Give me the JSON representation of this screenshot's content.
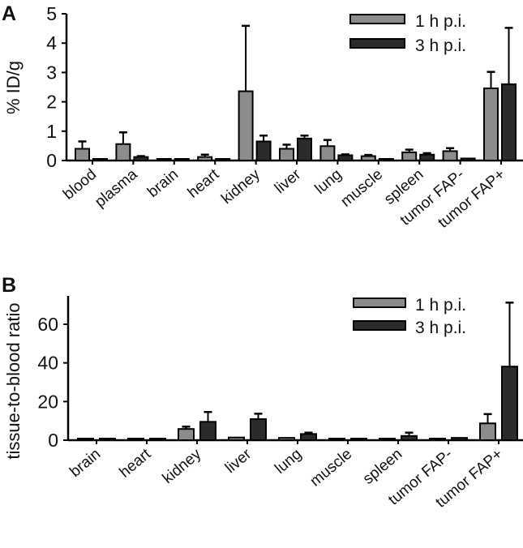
{
  "colors": {
    "series_1h": "#8c8c8c",
    "series_3h": "#2b2b2b",
    "outline": "#000000"
  },
  "chart_data": [
    {
      "panel": "A",
      "type": "bar",
      "ylabel": "% ID/g",
      "ylim": [
        0,
        5
      ],
      "yticks": [
        0,
        1,
        2,
        3,
        4,
        5
      ],
      "grid": false,
      "legend_position": "top-right",
      "categories": [
        "blood",
        "plasma",
        "brain",
        "heart",
        "kidney",
        "liver",
        "lung",
        "muscle",
        "spleen",
        "tumor FAP-",
        "tumor FAP+"
      ],
      "series": [
        {
          "name": "1 h p.i.",
          "values": [
            0.4,
            0.56,
            0.02,
            0.12,
            2.36,
            0.4,
            0.49,
            0.15,
            0.28,
            0.32,
            2.46
          ],
          "error": [
            0.25,
            0.4,
            0.01,
            0.08,
            2.23,
            0.14,
            0.21,
            0.04,
            0.09,
            0.1,
            0.56
          ]
        },
        {
          "name": "3 h p.i.",
          "values": [
            0.05,
            0.12,
            0.01,
            0.03,
            0.65,
            0.75,
            0.18,
            0.04,
            0.2,
            0.07,
            2.6
          ],
          "error": [
            0.02,
            0.03,
            0.01,
            0.01,
            0.2,
            0.1,
            0.03,
            0.01,
            0.05,
            0.02,
            1.92
          ]
        }
      ]
    },
    {
      "panel": "B",
      "type": "bar",
      "ylabel": "tissue-to-blood ratio",
      "ylim": [
        0,
        75
      ],
      "yticks": [
        0,
        20,
        40,
        60
      ],
      "grid": false,
      "legend_position": "top-right",
      "categories": [
        "brain",
        "heart",
        "kidney",
        "liver",
        "lung",
        "muscle",
        "spleen",
        "tumor FAP-",
        "tumor FAP+"
      ],
      "series": [
        {
          "name": "1 h p.i.",
          "values": [
            0.1,
            0.3,
            5.8,
            1.4,
            1.2,
            0.2,
            0.7,
            0.8,
            8.7
          ],
          "error": [
            0.05,
            0.1,
            1.2,
            0.3,
            0.2,
            0.1,
            0.2,
            0.2,
            4.8
          ]
        },
        {
          "name": "3 h p.i.",
          "values": [
            0.1,
            0.5,
            9.5,
            10.9,
            3.2,
            0.3,
            2.2,
            1.2,
            38.1
          ],
          "error": [
            0.05,
            0.1,
            5.1,
            2.8,
            0.7,
            0.1,
            1.7,
            0.4,
            33.1
          ]
        }
      ]
    }
  ]
}
